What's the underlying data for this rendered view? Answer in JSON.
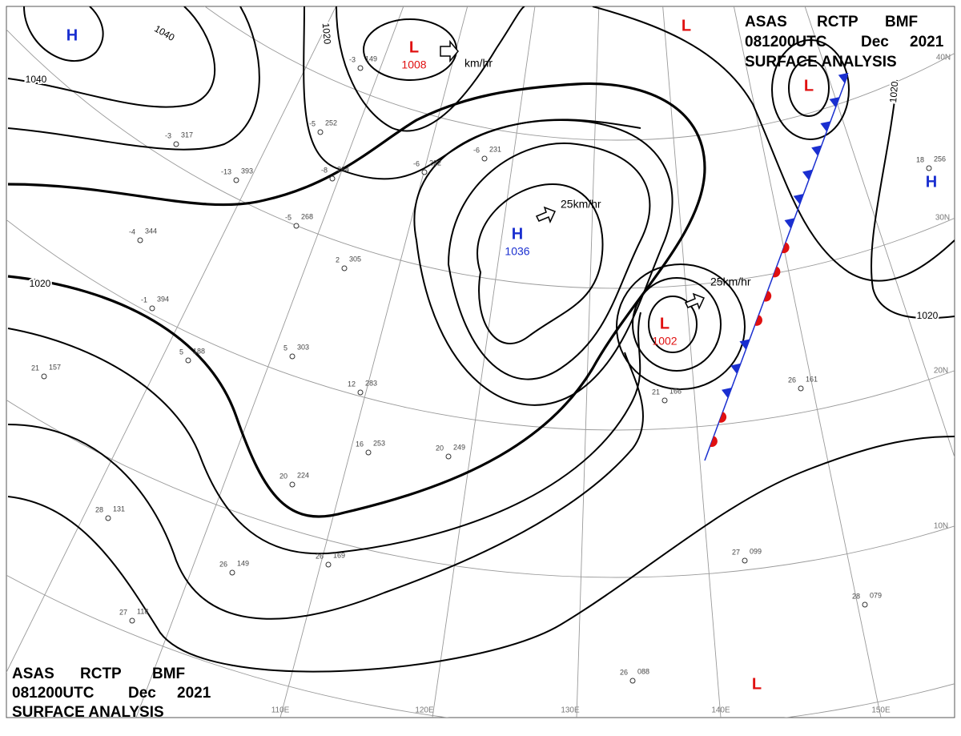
{
  "header": {
    "agency": "ASAS",
    "station": "RCTP",
    "code": "BMF",
    "time": "081200UTC",
    "month": "Dec",
    "year": "2021",
    "product": "SURFACE ANALYSIS"
  },
  "pressure_systems": [
    {
      "type": "H",
      "value": null,
      "color": "#1a2fd0"
    },
    {
      "type": "L",
      "value": "1008",
      "color": "#e01010"
    },
    {
      "type": "H",
      "value": "1036",
      "color": "#1a2fd0"
    },
    {
      "type": "L",
      "value": "1002",
      "color": "#e01010"
    },
    {
      "type": "L",
      "value": null,
      "color": "#e01010"
    },
    {
      "type": "L",
      "value": null,
      "color": "#e01010"
    },
    {
      "type": "H",
      "value": null,
      "color": "#1a2fd0"
    },
    {
      "type": "L",
      "value": null,
      "color": "#e01010"
    }
  ],
  "isobar_labels": [
    "1040",
    "1040",
    "1020",
    "1020",
    "1020",
    "1020"
  ],
  "motion_labels": [
    "km/hr",
    "25km/hr",
    "25km/hr"
  ],
  "latitude_labels": [
    "40N",
    "30N",
    "20N",
    "10N"
  ],
  "longitude_labels": [
    "110E",
    "120E",
    "130E",
    "140E",
    "150E"
  ],
  "stations": [
    {
      "temp": -3,
      "pressure": "149"
    },
    {
      "temp": -3,
      "pressure": "317"
    },
    {
      "temp": -13,
      "pressure": "393"
    },
    {
      "temp": -4,
      "pressure": "344"
    },
    {
      "temp": -1,
      "pressure": "394"
    },
    {
      "temp": 21,
      "pressure": "157"
    },
    {
      "temp": 5,
      "pressure": "188"
    },
    {
      "temp": 5,
      "pressure": "303"
    },
    {
      "temp": 12,
      "pressure": "283"
    },
    {
      "temp": 16,
      "pressure": "253"
    },
    {
      "temp": 20,
      "pressure": "224"
    },
    {
      "temp": 26,
      "pressure": "149"
    },
    {
      "temp": 26,
      "pressure": "169"
    },
    {
      "temp": 27,
      "pressure": "118"
    },
    {
      "temp": 28,
      "pressure": "131"
    },
    {
      "temp": 20,
      "pressure": "249"
    },
    {
      "temp": -6,
      "pressure": "222"
    },
    {
      "temp": -6,
      "pressure": "231"
    },
    {
      "temp": 21,
      "pressure": "166"
    },
    {
      "temp": 26,
      "pressure": "161"
    },
    {
      "temp": 27,
      "pressure": "099"
    },
    {
      "temp": 28,
      "pressure": "079"
    },
    {
      "temp": 26,
      "pressure": "088"
    },
    {
      "temp": 18,
      "pressure": "256"
    },
    {
      "temp": 2,
      "pressure": "305"
    },
    {
      "temp": -8,
      "pressure": "264"
    },
    {
      "temp": -5,
      "pressure": "268"
    },
    {
      "temp": -5,
      "pressure": "252"
    }
  ]
}
